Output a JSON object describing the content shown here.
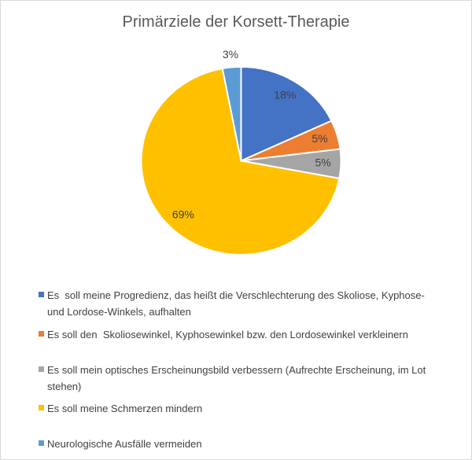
{
  "chart_data": {
    "type": "pie",
    "title": "Primärziele der Korsett-Therapie",
    "legend_position": "bottom",
    "start_angle_deg": 0,
    "direction": "clockwise",
    "slices": [
      {
        "label": "Es  soll meine Progredienz, das heißt die Verschlechterung des Skoliose, Kyphose-\nund Lordose-Winkels, aufhalten",
        "value": 18,
        "pct_label": "18%",
        "color": "#4472C4",
        "label_outside": false
      },
      {
        "label": "Es soll den  Skoliosewinkel, Kyphosewinkel bzw. den Lordosewinkel verkleinern",
        "value": 5,
        "pct_label": "5%",
        "color": "#ED7D31",
        "label_outside": false
      },
      {
        "label": "Es soll mein optisches Erscheinungsbild verbessern (Aufrechte Erscheinung, im Lot\nstehen)",
        "value": 5,
        "pct_label": "5%",
        "color": "#A5A5A5",
        "label_outside": false
      },
      {
        "label": "Es soll meine Schmerzen mindern",
        "value": 69,
        "pct_label": "69%",
        "color": "#FFC000",
        "label_outside": false
      },
      {
        "label": "Neurologische Ausfälle vermeiden",
        "value": 3,
        "pct_label": "3%",
        "color": "#5B9BD5",
        "label_outside": true
      }
    ],
    "colors": {
      "title_text": "#595959",
      "label_text": "#404040",
      "legend_text": "#404040",
      "frame_border": "#D9D9D9",
      "slice_border": "#FFFFFF",
      "background": "#FFFFFF"
    }
  }
}
